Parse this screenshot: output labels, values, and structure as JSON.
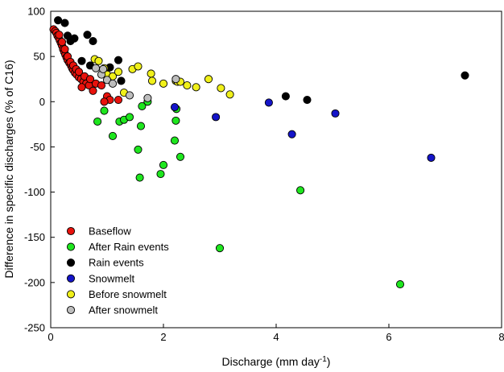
{
  "chart_data": {
    "type": "scatter",
    "title": "",
    "xlabel": "Discharge (mm day",
    "xlabel_sup": "-1",
    "xlabel_close": ")",
    "ylabel": "Difference in specific discharges (% of C16)",
    "xlim": [
      0,
      8
    ],
    "ylim": [
      -250,
      100
    ],
    "x_ticks": [
      0,
      2,
      4,
      6,
      8
    ],
    "y_ticks": [
      -250,
      -200,
      -150,
      -100,
      -50,
      0,
      50,
      100
    ],
    "grid": false,
    "legend_position": "bottom-left",
    "series": [
      {
        "name": "Baseflow",
        "color": "#e8120c",
        "points": [
          [
            0.05,
            80
          ],
          [
            0.08,
            78
          ],
          [
            0.1,
            76
          ],
          [
            0.12,
            73
          ],
          [
            0.14,
            71
          ],
          [
            0.16,
            68
          ],
          [
            0.18,
            65
          ],
          [
            0.2,
            62
          ],
          [
            0.22,
            58
          ],
          [
            0.24,
            55
          ],
          [
            0.26,
            52
          ],
          [
            0.28,
            49
          ],
          [
            0.3,
            46
          ],
          [
            0.33,
            43
          ],
          [
            0.36,
            40
          ],
          [
            0.38,
            37
          ],
          [
            0.4,
            35
          ],
          [
            0.43,
            32
          ],
          [
            0.46,
            30
          ],
          [
            0.5,
            27
          ],
          [
            0.54,
            25
          ],
          [
            0.58,
            22
          ],
          [
            0.63,
            20
          ],
          [
            0.68,
            18
          ],
          [
            0.15,
            74
          ],
          [
            0.2,
            66
          ],
          [
            0.25,
            58
          ],
          [
            0.3,
            50
          ],
          [
            0.35,
            44
          ],
          [
            0.4,
            40
          ],
          [
            0.45,
            36
          ],
          [
            0.5,
            33
          ],
          [
            0.6,
            28
          ],
          [
            0.7,
            25
          ],
          [
            0.8,
            20
          ],
          [
            0.9,
            18
          ],
          [
            0.55,
            16
          ],
          [
            0.75,
            12
          ],
          [
            1.0,
            6
          ],
          [
            1.05,
            2
          ],
          [
            1.2,
            2
          ],
          [
            0.95,
            0
          ]
        ]
      },
      {
        "name": "After Rain events",
        "color": "#1ee61e",
        "points": [
          [
            0.83,
            -22
          ],
          [
            0.95,
            -10
          ],
          [
            1.1,
            -38
          ],
          [
            1.22,
            -22
          ],
          [
            1.3,
            -20
          ],
          [
            1.4,
            -17
          ],
          [
            1.55,
            -53
          ],
          [
            1.6,
            -27
          ],
          [
            1.62,
            -5
          ],
          [
            1.72,
            0
          ],
          [
            1.58,
            -84
          ],
          [
            1.95,
            -80
          ],
          [
            2.0,
            -70
          ],
          [
            2.2,
            -43
          ],
          [
            2.22,
            -21
          ],
          [
            2.23,
            -8
          ],
          [
            2.3,
            -61
          ],
          [
            3.0,
            -162
          ],
          [
            4.43,
            -98
          ],
          [
            6.2,
            -202
          ]
        ]
      },
      {
        "name": "Rain events",
        "color": "#000000",
        "points": [
          [
            0.13,
            90
          ],
          [
            0.25,
            87
          ],
          [
            0.3,
            73
          ],
          [
            0.42,
            70
          ],
          [
            0.65,
            74
          ],
          [
            0.75,
            67
          ],
          [
            0.35,
            67
          ],
          [
            0.55,
            45
          ],
          [
            0.7,
            40
          ],
          [
            1.2,
            46
          ],
          [
            1.05,
            38
          ],
          [
            1.25,
            23
          ],
          [
            4.17,
            6
          ],
          [
            4.55,
            2
          ],
          [
            7.35,
            29
          ]
        ]
      },
      {
        "name": "Snowmelt",
        "color": "#1414c8",
        "points": [
          [
            2.2,
            -6
          ],
          [
            2.93,
            -17
          ],
          [
            3.87,
            -1
          ],
          [
            4.28,
            -36
          ],
          [
            5.05,
            -13
          ],
          [
            6.75,
            -62
          ]
        ]
      },
      {
        "name": "Before snowmelt",
        "color": "#f0f01a",
        "points": [
          [
            0.78,
            47
          ],
          [
            0.85,
            45
          ],
          [
            0.95,
            37
          ],
          [
            1.0,
            30
          ],
          [
            1.1,
            28
          ],
          [
            1.2,
            33
          ],
          [
            1.45,
            36
          ],
          [
            1.55,
            39
          ],
          [
            1.78,
            31
          ],
          [
            1.8,
            23
          ],
          [
            2.0,
            20
          ],
          [
            2.22,
            23
          ],
          [
            2.25,
            22
          ],
          [
            2.3,
            22
          ],
          [
            2.42,
            18
          ],
          [
            2.58,
            16
          ],
          [
            2.8,
            25
          ],
          [
            3.02,
            15
          ],
          [
            3.18,
            8
          ],
          [
            1.3,
            10
          ]
        ]
      },
      {
        "name": "After snowmelt",
        "color": "#bdbdbd",
        "points": [
          [
            0.8,
            37
          ],
          [
            0.9,
            30
          ],
          [
            0.93,
            36
          ],
          [
            1.0,
            24
          ],
          [
            1.1,
            20
          ],
          [
            1.4,
            7
          ],
          [
            1.72,
            4
          ],
          [
            2.22,
            25
          ]
        ]
      }
    ]
  }
}
